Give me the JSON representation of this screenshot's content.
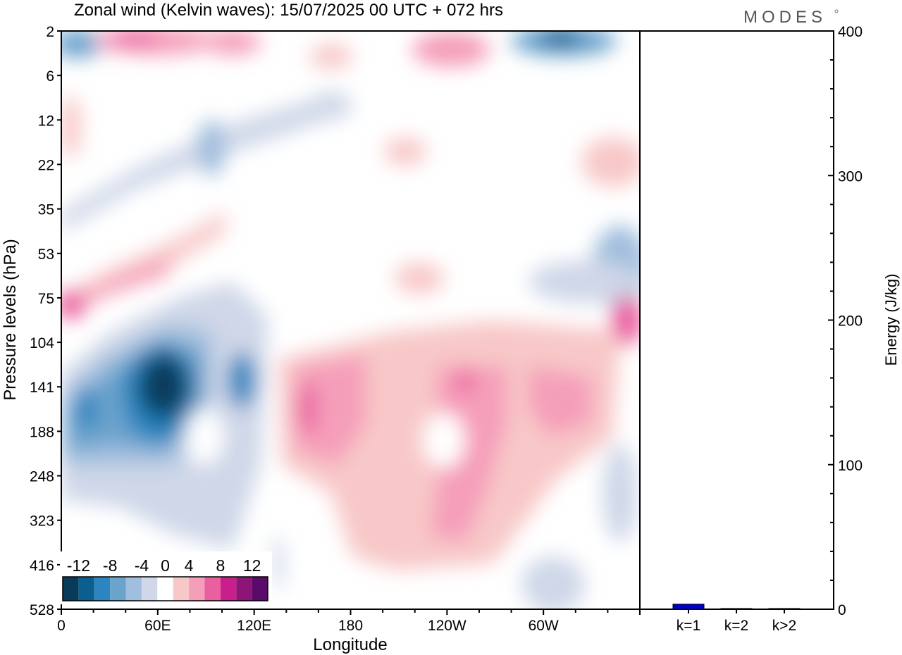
{
  "logo": "MODES",
  "chart_data": [
    {
      "type": "heatmap",
      "title": "Zonal wind (Kelvin waves):  15/07/2025  00 UTC  + 072 hrs",
      "xlabel": "Longitude",
      "ylabel": "Pressure levels (hPa)",
      "x_ticks": [
        "0",
        "60E",
        "120E",
        "180",
        "120W",
        "60W"
      ],
      "y_ticks": [
        "2",
        "6",
        "12",
        "22",
        "35",
        "53",
        "75",
        "104",
        "141",
        "188",
        "248",
        "323",
        "416",
        "528"
      ],
      "colorbar": {
        "labels": [
          "-12",
          "-8",
          "-4",
          "0",
          "4",
          "8",
          "12"
        ],
        "levels": [
          -14,
          -12,
          -10,
          -8,
          -6,
          -4,
          -2,
          2,
          4,
          6,
          8,
          10,
          12,
          14
        ],
        "colors": [
          "#0a3a5a",
          "#0b5f8e",
          "#2b85c0",
          "#6aa3cc",
          "#a0bedd",
          "#cfd7e8",
          "#ffffff",
          "#f8c8c8",
          "#f59eb9",
          "#ea5fa0",
          "#c81f8a",
          "#8e1578",
          "#5c0a6a"
        ]
      },
      "features": [
        {
          "lon": 55,
          "level": 141,
          "value": -14
        },
        {
          "lon": 12,
          "level": 160,
          "value": -10
        },
        {
          "lon": 110,
          "level": 141,
          "value": -10
        },
        {
          "lon": 10,
          "level": 2,
          "value": -6
        },
        {
          "lon": 290,
          "level": 2,
          "value": -10
        },
        {
          "lon": 350,
          "level": 53,
          "value": -6
        },
        {
          "lon": 0,
          "level": 80,
          "value": 8
        },
        {
          "lon": 150,
          "level": 160,
          "value": 8
        },
        {
          "lon": 230,
          "level": 141,
          "value": 8
        },
        {
          "lon": 290,
          "level": 160,
          "value": 6
        },
        {
          "lon": 235,
          "level": 300,
          "value": 6
        },
        {
          "lon": 355,
          "level": 90,
          "value": 10
        },
        {
          "lon": 45,
          "level": 2,
          "value": 8
        },
        {
          "lon": 95,
          "level": 2,
          "value": 6
        }
      ]
    },
    {
      "type": "bar",
      "categories": [
        "k=1",
        "k=2",
        "k>2"
      ],
      "values": [
        3.5,
        0.5,
        0.5
      ],
      "ylabel": "Energy (J/kg)",
      "ylim": [
        0,
        400
      ],
      "y_ticks": [
        "0",
        "100",
        "200",
        "300",
        "400"
      ],
      "bar_color": "#0000cc"
    }
  ]
}
